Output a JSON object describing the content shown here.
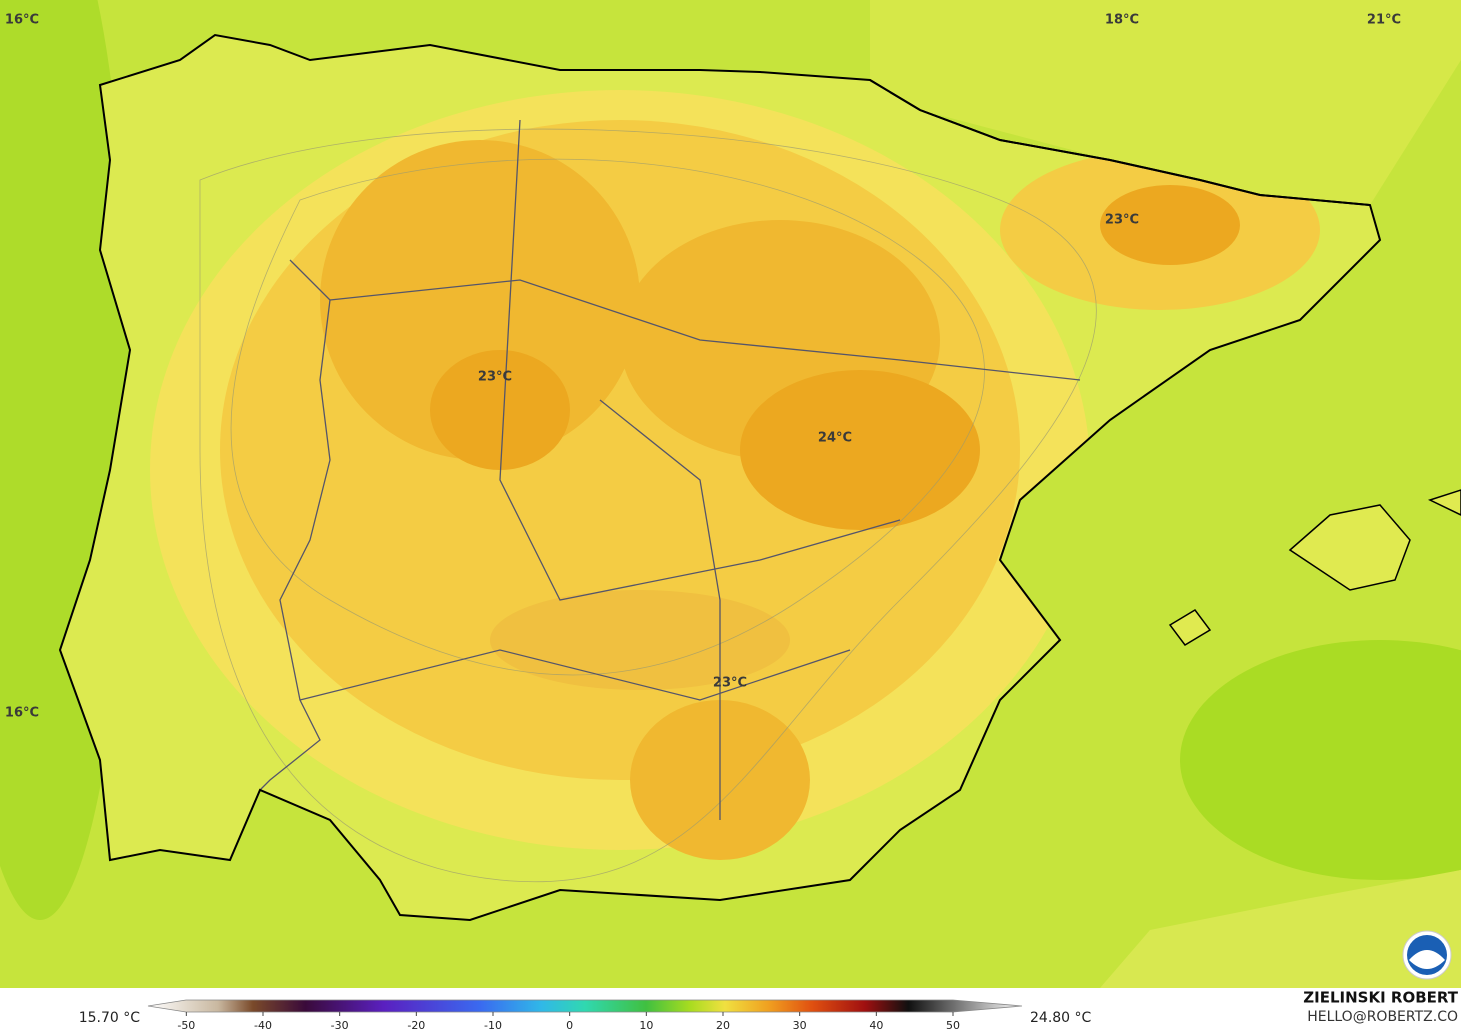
{
  "map": {
    "labels": [
      "16°C",
      "18°C",
      "21°C",
      "23°C",
      "23°C",
      "24°C",
      "23°C",
      "16°C"
    ]
  },
  "legend": {
    "min_label": "15.70 °C",
    "max_label": "24.80 °C",
    "range": [
      -55,
      59
    ],
    "ticks": [
      -50,
      -40,
      -30,
      -20,
      -10,
      0,
      10,
      20,
      30,
      40,
      50
    ]
  },
  "credits": {
    "author": "ZIELINSKI ROBERT",
    "contact": "HELLO@ROBERTZ.CO"
  }
}
